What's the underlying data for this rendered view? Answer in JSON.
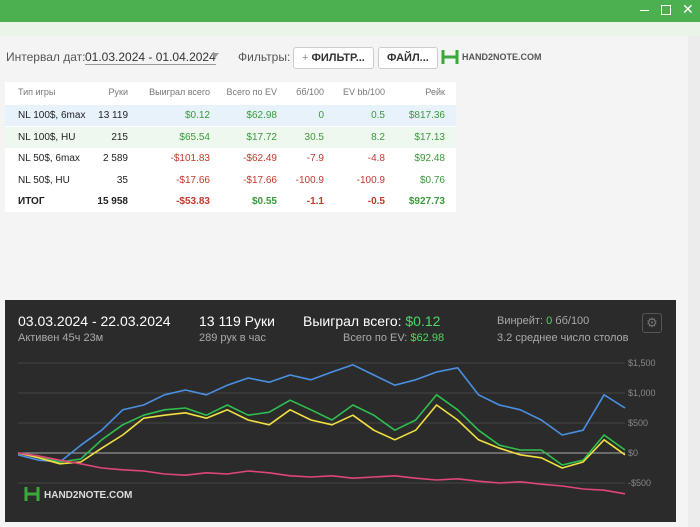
{
  "filters": {
    "date_label": "Интервал дат:",
    "date_range": "01.03.2024 - 01.04.2024",
    "filters_label": "Фильтры:",
    "filter_button": "ФИЛЬТР...",
    "file_button": "ФАЙЛ...",
    "logo": "HAND2NOTE.COM"
  },
  "table": {
    "columns": [
      "Тип игры",
      "Руки",
      "Выиграл всего",
      "Всего по EV",
      "бб/100",
      "EV bb/100",
      "Рейк"
    ],
    "rows": [
      [
        "NL 100$, 6max",
        "13 119",
        "$0.12",
        "$62.98",
        "0",
        "0.5",
        "$817.36"
      ],
      [
        "NL 100$, HU",
        "215",
        "$65.54",
        "$17.72",
        "30.5",
        "8.2",
        "$17.13"
      ],
      [
        "NL 50$, 6max",
        "2 589",
        "-$101.83",
        "-$62.49",
        "-7.9",
        "-4.8",
        "$92.48"
      ],
      [
        "NL 50$, HU",
        "35",
        "-$17.66",
        "-$17.66",
        "-100.9",
        "-100.9",
        "$0.76"
      ],
      [
        "ИТОГ",
        "15 958",
        "-$53.83",
        "$0.55",
        "-1.1",
        "-0.5",
        "$927.73"
      ]
    ]
  },
  "summary": {
    "date_range": "03.03.2024 - 22.03.2024",
    "active": "Активен 45ч 23м",
    "hands": "13 119 Руки",
    "hands_per_hour": "289 рук в час",
    "won_label": "Выиграл всего:",
    "won_value": "$0.12",
    "ev_label": "Всего по EV:",
    "ev_value": "$62.98",
    "winrate_label": "Винрейт:",
    "winrate_value": "0",
    "winrate_unit": "бб/100",
    "tables": "3.2 среднее число столов",
    "logo": "HAND2NOTE.COM"
  },
  "chart_data": {
    "type": "line",
    "ylim": [
      -800,
      1700
    ],
    "yticks": [
      {
        "value": 1500,
        "label": "$1,500"
      },
      {
        "value": 1000,
        "label": "$1,000"
      },
      {
        "value": 500,
        "label": "$500"
      },
      {
        "value": 0,
        "label": "$0"
      },
      {
        "value": -500,
        "label": "-$500"
      }
    ],
    "series": [
      {
        "color": "#4a90e2",
        "values": [
          -30,
          -120,
          -150,
          130,
          380,
          720,
          800,
          970,
          1050,
          970,
          1130,
          1250,
          1180,
          1300,
          1220,
          1350,
          1470,
          1300,
          1130,
          1220,
          1350,
          1420,
          970,
          800,
          720,
          550,
          300,
          380,
          970,
          750
        ]
      },
      {
        "color": "#2fbf4f",
        "values": [
          0,
          -50,
          -150,
          -100,
          220,
          470,
          630,
          720,
          750,
          630,
          800,
          630,
          680,
          880,
          720,
          550,
          800,
          630,
          380,
          550,
          970,
          720,
          380,
          130,
          50,
          50,
          -200,
          -120,
          300,
          50
        ]
      },
      {
        "color": "#f0e040",
        "values": [
          0,
          -80,
          -180,
          -150,
          80,
          300,
          580,
          630,
          670,
          580,
          720,
          550,
          470,
          720,
          550,
          470,
          630,
          380,
          220,
          380,
          800,
          550,
          220,
          80,
          -30,
          -80,
          -250,
          -150,
          220,
          -30
        ]
      },
      {
        "color": "#e0457b",
        "values": [
          0,
          -50,
          -120,
          -180,
          -250,
          -280,
          -300,
          -350,
          -370,
          -330,
          -350,
          -300,
          -330,
          -380,
          -400,
          -380,
          -420,
          -400,
          -380,
          -420,
          -450,
          -430,
          -470,
          -500,
          -480,
          -520,
          -550,
          -600,
          -620,
          -680
        ]
      }
    ]
  }
}
